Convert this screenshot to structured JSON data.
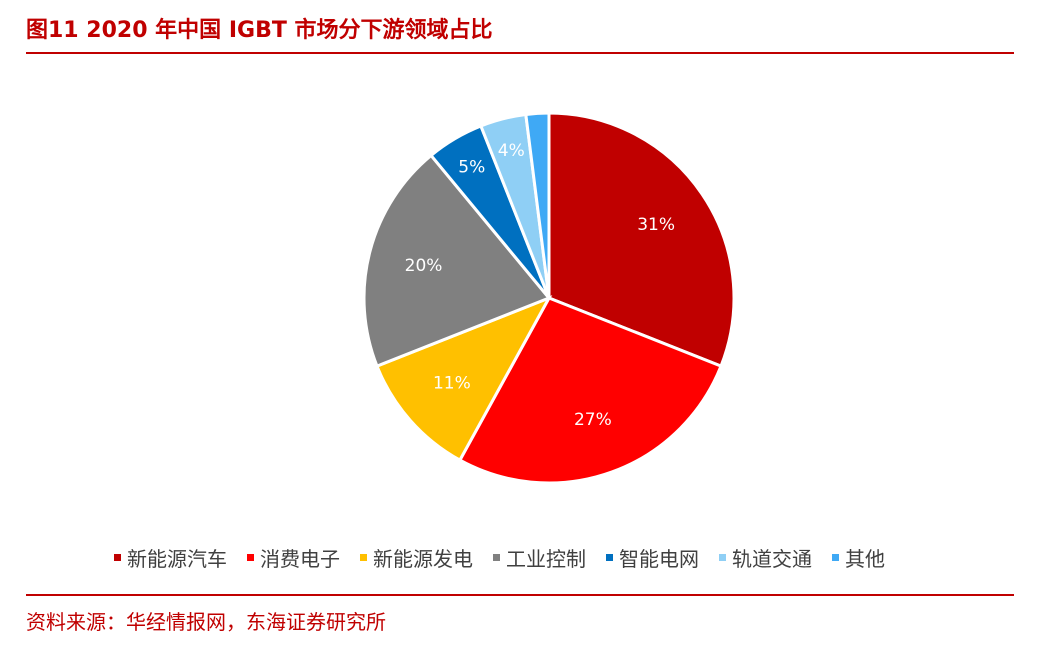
{
  "header": {
    "title": "图11  2020 年中国 IGBT 市场分下游领域占比"
  },
  "footer": {
    "source": "资料来源：华经情报网，东海证券研究所"
  },
  "chart_data": {
    "type": "pie",
    "title": "",
    "legend_position": "bottom",
    "slices": [
      {
        "label": "新能源汽车",
        "value": 31,
        "data_label": "31%",
        "color": "#C00000"
      },
      {
        "label": "消费电子",
        "value": 27,
        "data_label": "27%",
        "color": "#FF0000"
      },
      {
        "label": "新能源发电",
        "value": 11,
        "data_label": "11%",
        "color": "#FFC000"
      },
      {
        "label": "工业控制",
        "value": 20,
        "data_label": "20%",
        "color": "#808080"
      },
      {
        "label": "智能电网",
        "value": 5,
        "data_label": "5%",
        "color": "#0070C0"
      },
      {
        "label": "轨道交通",
        "value": 4,
        "data_label": "4%",
        "color": "#8FCFF5"
      },
      {
        "label": "其他",
        "value": 2,
        "data_label": "",
        "color": "#3FA9F5"
      }
    ]
  }
}
